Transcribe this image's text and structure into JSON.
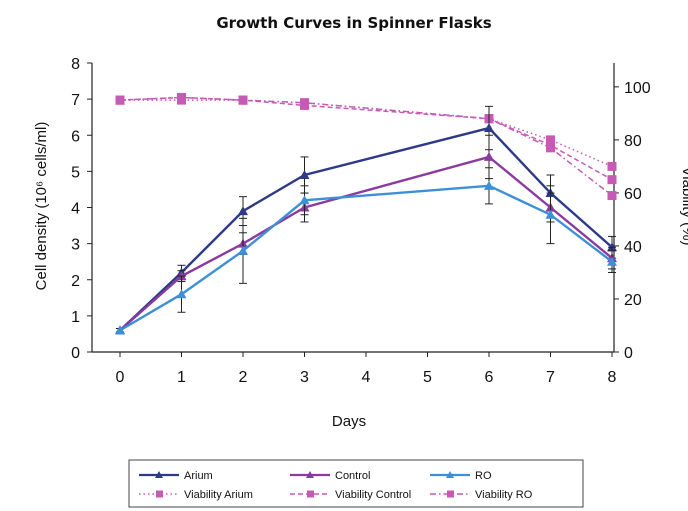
{
  "chart_data": {
    "type": "line",
    "title": "Growth Curves in Spinner Flasks",
    "xlabel": "Days",
    "ylabel_left": "Cell density (10⁶ cells/ml)",
    "ylabel_right": "Viability (%)",
    "x": [
      0,
      1,
      2,
      3,
      6,
      7,
      8
    ],
    "xticks": [
      0,
      1,
      2,
      3,
      4,
      5,
      6,
      7,
      8
    ],
    "ylim_left": [
      0,
      8
    ],
    "yticks_left": [
      0,
      1,
      2,
      3,
      4,
      5,
      6,
      7,
      8
    ],
    "ylim_right": [
      0,
      109
    ],
    "yticks_right": [
      0,
      20,
      40,
      60,
      80,
      100
    ],
    "grid": false,
    "legend_position": "bottom",
    "series": [
      {
        "name": "Arium",
        "axis": "left",
        "style": "solid",
        "marker": "triangle",
        "color": "#2e3a87",
        "values": [
          0.6,
          2.2,
          3.9,
          4.9,
          6.2,
          4.4,
          2.9
        ],
        "errors": [
          0.05,
          0.2,
          0.4,
          0.5,
          0.6,
          0.5,
          0.3
        ]
      },
      {
        "name": "Control",
        "axis": "left",
        "style": "solid",
        "marker": "triangle",
        "color": "#8b3a9e",
        "values": [
          0.6,
          2.1,
          3.0,
          4.0,
          5.4,
          4.0,
          2.6
        ],
        "errors": [
          0.05,
          0.15,
          0.3,
          0.4,
          0.6,
          0.4,
          0.3
        ]
      },
      {
        "name": "RO",
        "axis": "left",
        "style": "solid",
        "marker": "triangle",
        "color": "#3d8fd6",
        "values": [
          0.6,
          1.6,
          2.8,
          4.2,
          4.6,
          3.8,
          2.5
        ],
        "errors": [
          0.05,
          0.5,
          0.9,
          0.4,
          0.5,
          0.8,
          0.3
        ]
      },
      {
        "name": "Viability Arium",
        "axis": "right",
        "style": "dotted",
        "marker": "square",
        "color": "#c65ab4",
        "values": [
          95,
          95,
          95,
          94,
          88,
          80,
          70
        ]
      },
      {
        "name": "Viability Control",
        "axis": "right",
        "style": "dashed",
        "marker": "square",
        "color": "#c65ab4",
        "values": [
          95,
          96,
          95,
          93,
          88,
          78,
          65
        ]
      },
      {
        "name": "Viability RO",
        "axis": "right",
        "style": "dashdot",
        "marker": "square",
        "color": "#c65ab4",
        "values": [
          95,
          96,
          95,
          94,
          88,
          77,
          59
        ]
      }
    ]
  }
}
